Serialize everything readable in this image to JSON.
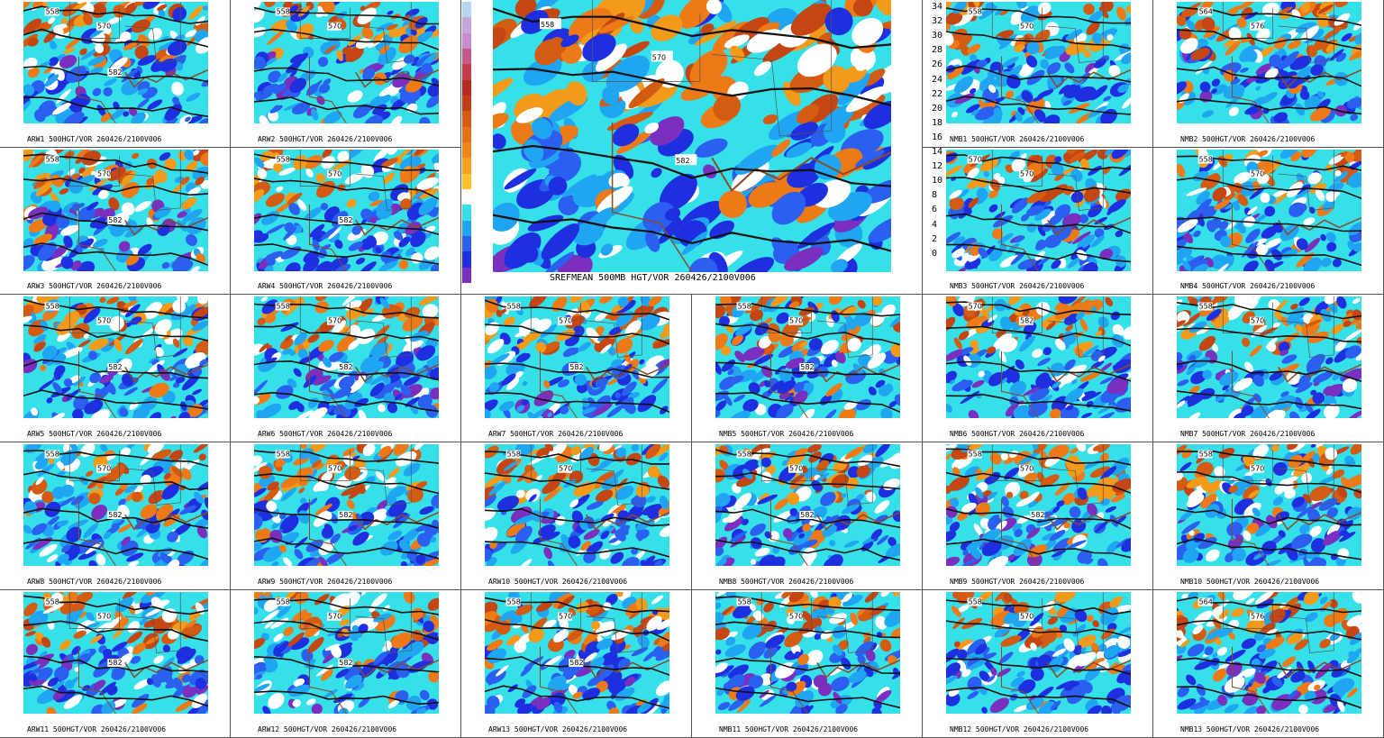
{
  "palette": [
    "#7a2fbf",
    "#1e2fe0",
    "#2a5ff0",
    "#1fa5f2",
    "#35e0e8",
    "#ffffff",
    "#f6c224",
    "#f39a1a",
    "#ee7a17",
    "#d45b12",
    "#c44612",
    "#b8341a",
    "#a8261e",
    "#c93a5a",
    "#b85a8e",
    "#a86ab0"
  ],
  "colorbar": {
    "ticks": [
      "34",
      "32",
      "30",
      "28",
      "26",
      "24",
      "22",
      "20",
      "18",
      "16",
      "14",
      "12",
      "10",
      "8",
      "6",
      "4",
      "2",
      "0"
    ],
    "colors": [
      "#b6d6f6",
      "#c9a3dc",
      "#c88ad0",
      "#c45a8c",
      "#c73c4c",
      "#b8281e",
      "#c23c16",
      "#d45b12",
      "#e4701a",
      "#f0861c",
      "#f6a11f",
      "#fcc42a",
      "#ffffff",
      "#35e0e8",
      "#1fa5f2",
      "#2a5ff0",
      "#1e2fe0",
      "#7a2fbf"
    ]
  },
  "center_panel": {
    "caption": "SREFMEAN 500MB HGT/VOR 260426/2100V006",
    "contour_labels": [
      "558",
      "570",
      "582"
    ]
  },
  "panels": [
    {
      "caption": "ARW1 500HGT/VOR 260426/2100V006",
      "labels": [
        "558",
        "570",
        "582"
      ]
    },
    {
      "caption": "ARW2 500HGT/VOR 260426/2100V006",
      "labels": [
        "558",
        "570"
      ]
    },
    {
      "caption": "NMB1 500HGT/VOR 260426/2100V006",
      "labels": [
        "558",
        "570"
      ]
    },
    {
      "caption": "NMB2 500HGT/VOR 260426/2100V006",
      "labels": [
        "564",
        "576"
      ]
    },
    {
      "caption": "ARW3 500HGT/VOR 260426/2100V006",
      "labels": [
        "558",
        "570",
        "582"
      ]
    },
    {
      "caption": "ARW4 500HGT/VOR 260426/2100V006",
      "labels": [
        "558",
        "570",
        "582"
      ]
    },
    {
      "caption": "NMB3 500HGT/VOR 260426/2100V006",
      "labels": [
        "570",
        "570"
      ]
    },
    {
      "caption": "NMB4 500HGT/VOR 260426/2100V006",
      "labels": [
        "558",
        "570"
      ]
    },
    {
      "caption": "ARW5 500HGT/VOR 260426/2100V006",
      "labels": [
        "558",
        "570",
        "582"
      ]
    },
    {
      "caption": "ARW6 500HGT/VOR 260426/2100V006",
      "labels": [
        "558",
        "570",
        "582"
      ]
    },
    {
      "caption": "ARW7 500HGT/VOR 260426/2100V006",
      "labels": [
        "558",
        "570",
        "582"
      ]
    },
    {
      "caption": "NMB5 500HGT/VOR 260426/2100V006",
      "labels": [
        "558",
        "570",
        "582"
      ]
    },
    {
      "caption": "NMB6 500HGT/VOR 260426/2100V006",
      "labels": [
        "570",
        "582"
      ]
    },
    {
      "caption": "NMB7 500HGT/VOR 260426/2100V006",
      "labels": [
        "558",
        "570"
      ]
    },
    {
      "caption": "ARW8 500HGT/VOR 260426/2100V006",
      "labels": [
        "558",
        "570",
        "582"
      ]
    },
    {
      "caption": "ARW9 500HGT/VOR 260426/2100V006",
      "labels": [
        "558",
        "570",
        "582"
      ]
    },
    {
      "caption": "ARW10 500HGT/VOR 260426/2100V006",
      "labels": [
        "558",
        "570"
      ]
    },
    {
      "caption": "NMB8 500HGT/VOR 260426/2100V006",
      "labels": [
        "558",
        "570",
        "582"
      ]
    },
    {
      "caption": "NMB9 500HGT/VOR 260426/2100V006",
      "labels": [
        "558",
        "570",
        "582"
      ]
    },
    {
      "caption": "NMB10 500HGT/VOR 260426/2100V006",
      "labels": [
        "558",
        "570"
      ]
    },
    {
      "caption": "ARW11 500HGT/VOR 260426/2100V006",
      "labels": [
        "558",
        "570",
        "582"
      ]
    },
    {
      "caption": "ARW12 500HGT/VOR 260426/2100V006",
      "labels": [
        "558",
        "570",
        "582"
      ]
    },
    {
      "caption": "ARW13 500HGT/VOR 260426/2100V006",
      "labels": [
        "558",
        "570",
        "582"
      ]
    },
    {
      "caption": "NMB11 500HGT/VOR 260426/2100V006",
      "labels": [
        "558",
        "570"
      ]
    },
    {
      "caption": "NMB12 500HGT/VOR 260426/2100V006",
      "labels": [
        "558",
        "570"
      ]
    },
    {
      "caption": "NMB13 500HGT/VOR 260426/2100V006",
      "labels": [
        "564",
        "576"
      ]
    }
  ]
}
